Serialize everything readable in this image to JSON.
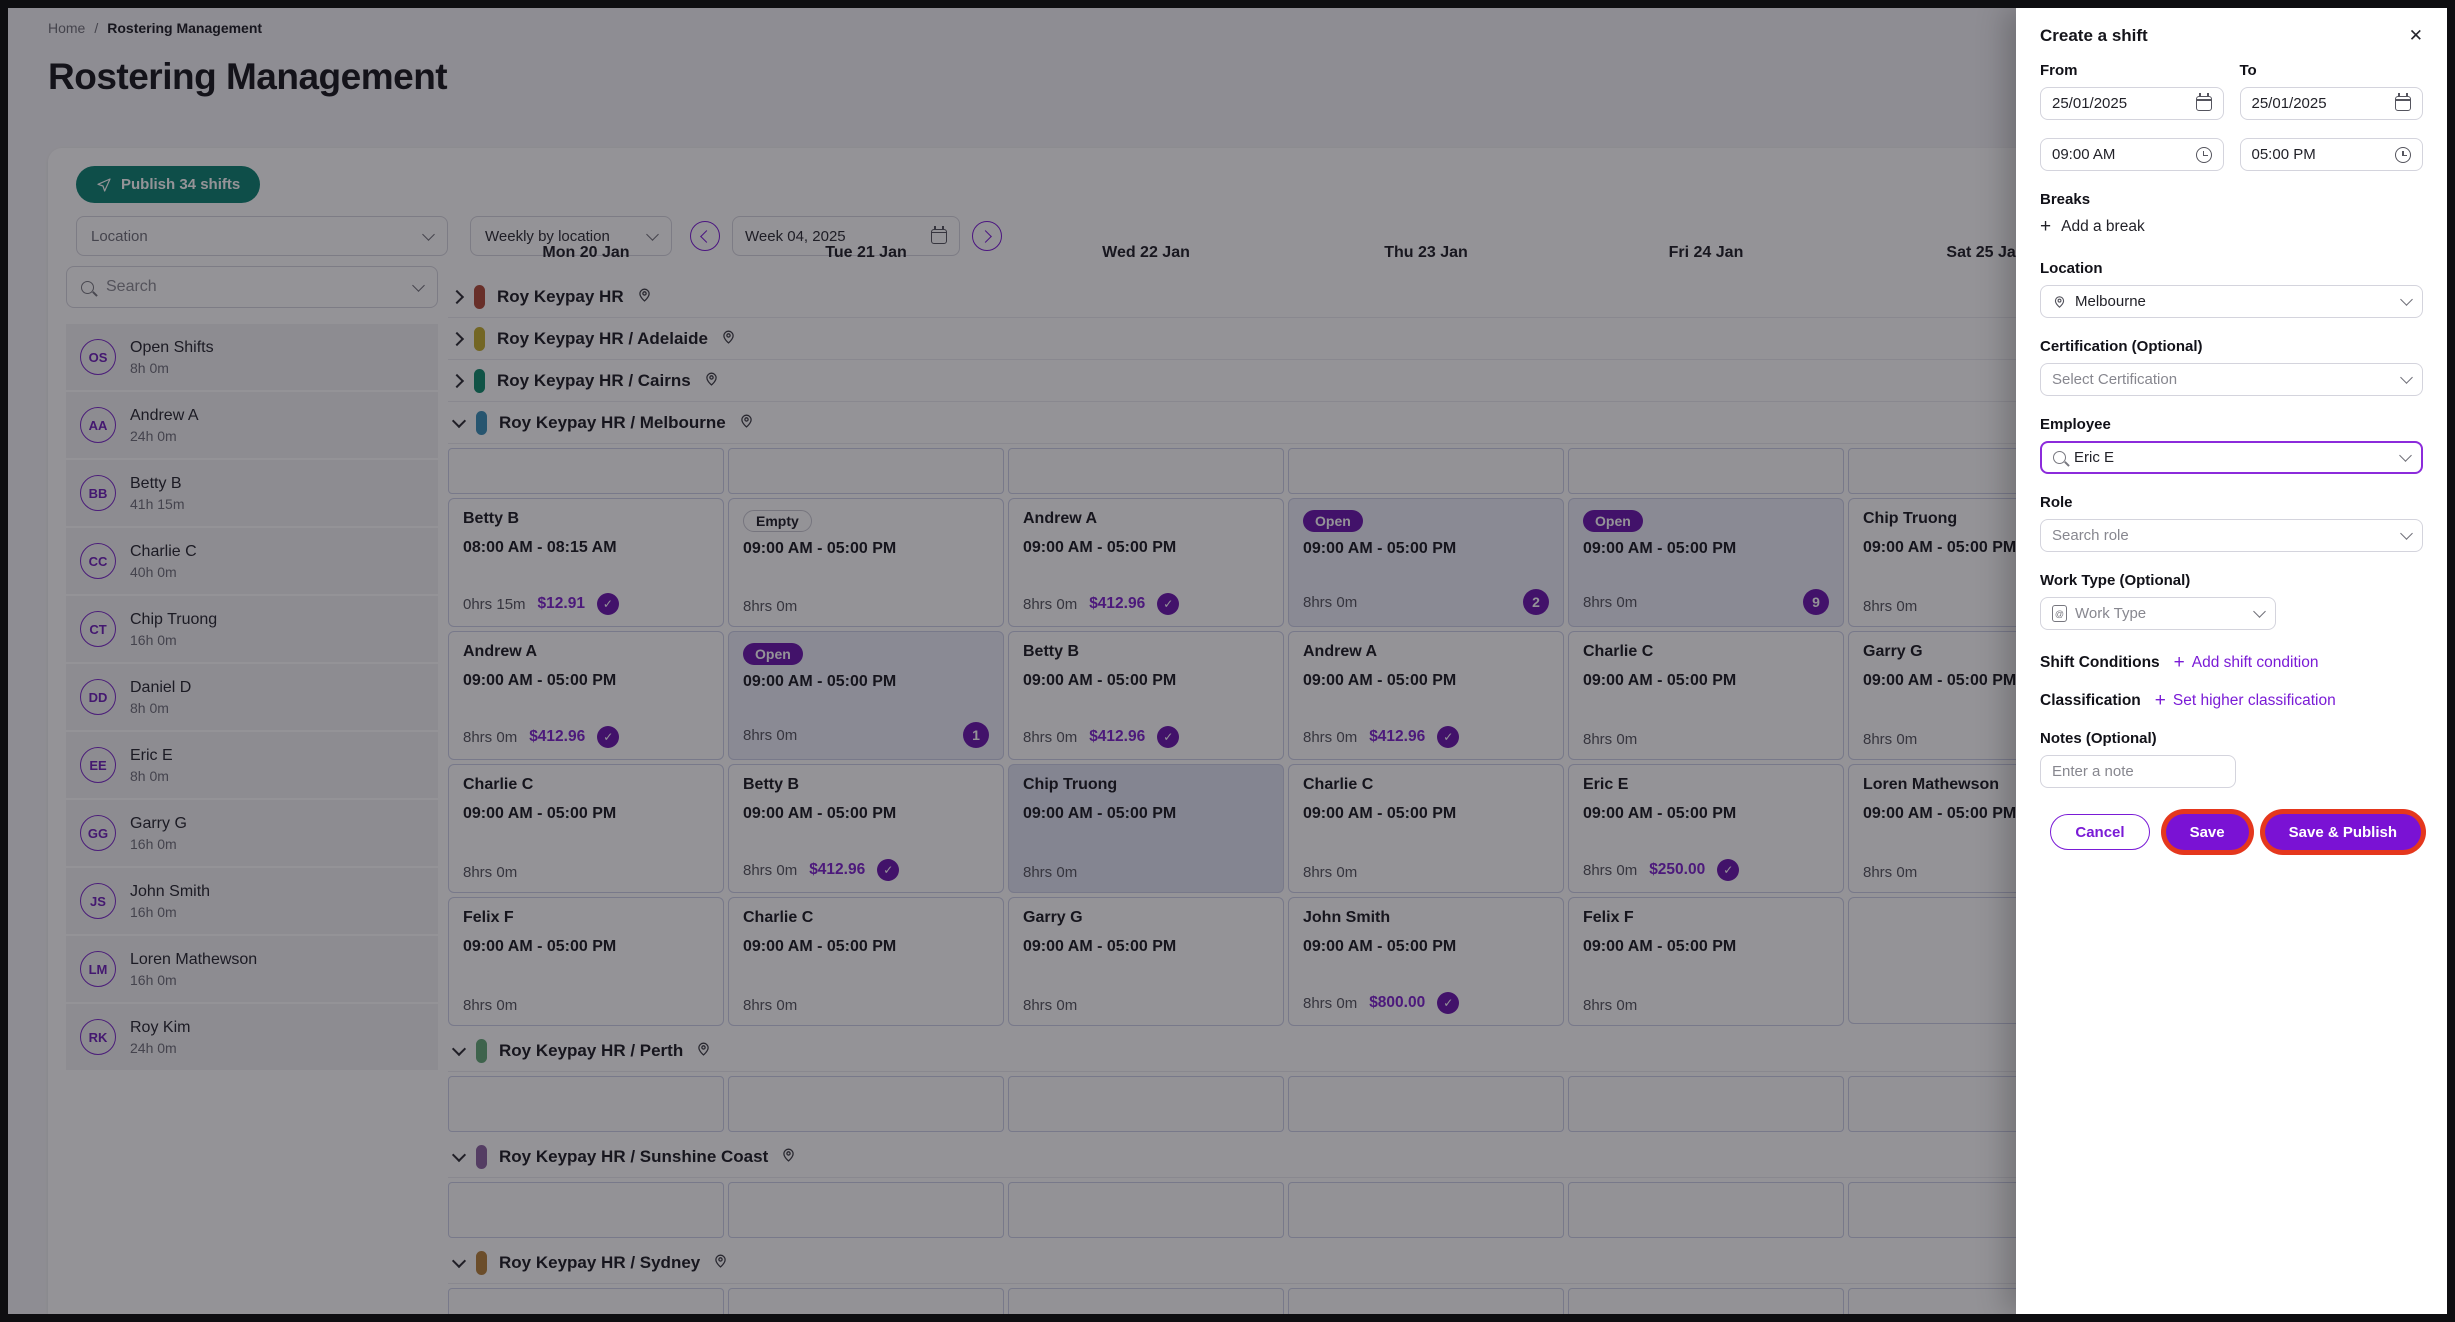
{
  "colors": {
    "accent_purple": "#7a1bd6",
    "badge_purple": "#6a15ae",
    "money_purple": "#7c22cc",
    "publish_teal": "#0c8172",
    "highlight_ring_red": "#e5371d",
    "open_cell_bg": "#edeffa",
    "selected_cell_bg": "#e2e6f4"
  },
  "icons": {
    "search": "magnifier",
    "calendar": "calendar-grid",
    "clock": "clock-face",
    "pin": "map-pin",
    "chevron": "chevron-down",
    "plus": "plus",
    "check": "check-circle",
    "send": "paper-plane",
    "close": "x"
  },
  "breadcrumb": {
    "home": "Home",
    "separator": "/",
    "current": "Rostering Management"
  },
  "page_title": "Rostering Management",
  "toolbar": {
    "publish_label": "Publish 34 shifts",
    "location_filter_placeholder": "Location",
    "view_select_value": "Weekly by location",
    "week_value": "Week 04, 2025"
  },
  "sidebar": {
    "search_placeholder": "Search",
    "people": [
      {
        "initials": "OS",
        "name": "Open Shifts",
        "hours": "8h 0m"
      },
      {
        "initials": "AA",
        "name": "Andrew A",
        "hours": "24h 0m"
      },
      {
        "initials": "BB",
        "name": "Betty B",
        "hours": "41h 15m"
      },
      {
        "initials": "CC",
        "name": "Charlie C",
        "hours": "40h 0m"
      },
      {
        "initials": "CT",
        "name": "Chip Truong",
        "hours": "16h 0m"
      },
      {
        "initials": "DD",
        "name": "Daniel D",
        "hours": "8h 0m"
      },
      {
        "initials": "EE",
        "name": "Eric E",
        "hours": "8h 0m"
      },
      {
        "initials": "GG",
        "name": "Garry G",
        "hours": "16h 0m"
      },
      {
        "initials": "JS",
        "name": "John Smith",
        "hours": "16h 0m"
      },
      {
        "initials": "LM",
        "name": "Loren Mathewson",
        "hours": "16h 0m"
      },
      {
        "initials": "RK",
        "name": "Roy Kim",
        "hours": "24h 0m"
      }
    ]
  },
  "calendar": {
    "days": [
      "Mon 20 Jan",
      "Tue 21 Jan",
      "Wed 22 Jan",
      "Thu 23 Jan",
      "Fri 24 Jan",
      "Sat 25 Jan"
    ],
    "groups": [
      {
        "name": "Roy Keypay HR",
        "color": "#b04a38",
        "expanded": false
      },
      {
        "name": "Roy Keypay HR / Adelaide",
        "color": "#c3ad2e",
        "expanded": false
      },
      {
        "name": "Roy Keypay HR / Cairns",
        "color": "#0f8b6c",
        "expanded": false
      },
      {
        "name": "Roy Keypay HR / Melbourne",
        "color": "#3a8fb7",
        "expanded": true,
        "spacer_h": 46,
        "rows": [
          [
            {
              "type": "shift",
              "name": "Betty B",
              "time": "08:00 AM - 08:15 AM",
              "duration": "0hrs 15m",
              "pay": "$12.91",
              "approved": true
            },
            {
              "type": "empty",
              "badge": "Empty",
              "time": "09:00 AM - 05:00 PM",
              "duration": "8hrs 0m"
            },
            {
              "type": "shift",
              "name": "Andrew A",
              "time": "09:00 AM - 05:00 PM",
              "duration": "8hrs 0m",
              "pay": "$412.96",
              "approved": true
            },
            {
              "type": "open",
              "badge": "Open",
              "time": "09:00 AM - 05:00 PM",
              "duration": "8hrs 0m",
              "count": "2"
            },
            {
              "type": "open",
              "badge": "Open",
              "time": "09:00 AM - 05:00 PM",
              "duration": "8hrs 0m",
              "count": "9"
            },
            {
              "type": "shift",
              "name": "Chip Truong",
              "time": "09:00 AM - 05:00 PM",
              "duration": "8hrs 0m"
            }
          ],
          [
            {
              "type": "shift",
              "name": "Andrew A",
              "time": "09:00 AM - 05:00 PM",
              "duration": "8hrs 0m",
              "pay": "$412.96",
              "approved": true
            },
            {
              "type": "open",
              "badge": "Open",
              "time": "09:00 AM - 05:00 PM",
              "duration": "8hrs 0m",
              "count": "1"
            },
            {
              "type": "shift",
              "name": "Betty B",
              "time": "09:00 AM - 05:00 PM",
              "duration": "8hrs 0m",
              "pay": "$412.96",
              "approved": true
            },
            {
              "type": "shift",
              "name": "Andrew A",
              "time": "09:00 AM - 05:00 PM",
              "duration": "8hrs 0m",
              "pay": "$412.96",
              "approved": true
            },
            {
              "type": "shift",
              "name": "Charlie C",
              "time": "09:00 AM - 05:00 PM",
              "duration": "8hrs 0m"
            },
            {
              "type": "shift",
              "name": "Garry G",
              "time": "09:00 AM - 05:00 PM",
              "duration": "8hrs 0m"
            }
          ],
          [
            {
              "type": "shift",
              "name": "Charlie C",
              "time": "09:00 AM - 05:00 PM",
              "duration": "8hrs 0m"
            },
            {
              "type": "shift",
              "name": "Betty B",
              "time": "09:00 AM - 05:00 PM",
              "duration": "8hrs 0m",
              "pay": "$412.96",
              "approved": true
            },
            {
              "type": "shift",
              "name": "Chip Truong",
              "time": "09:00 AM - 05:00 PM",
              "duration": "8hrs 0m",
              "highlight": true
            },
            {
              "type": "shift",
              "name": "Charlie C",
              "time": "09:00 AM - 05:00 PM",
              "duration": "8hrs 0m"
            },
            {
              "type": "shift",
              "name": "Eric E",
              "time": "09:00 AM - 05:00 PM",
              "duration": "8hrs 0m",
              "pay": "$250.00",
              "approved": true
            },
            {
              "type": "shift",
              "name": "Loren Mathewson",
              "time": "09:00 AM - 05:00 PM",
              "duration": "8hrs 0m"
            }
          ],
          [
            {
              "type": "shift",
              "name": "Felix F",
              "time": "09:00 AM - 05:00 PM",
              "duration": "8hrs 0m"
            },
            {
              "type": "shift",
              "name": "Charlie C",
              "time": "09:00 AM - 05:00 PM",
              "duration": "8hrs 0m"
            },
            {
              "type": "shift",
              "name": "Garry G",
              "time": "09:00 AM - 05:00 PM",
              "duration": "8hrs 0m"
            },
            {
              "type": "shift",
              "name": "John Smith",
              "time": "09:00 AM - 05:00 PM",
              "duration": "8hrs 0m",
              "pay": "$800.00",
              "approved": true
            },
            {
              "type": "shift",
              "name": "Felix F",
              "time": "09:00 AM - 05:00 PM",
              "duration": "8hrs 0m"
            },
            {
              "type": "none"
            }
          ]
        ]
      },
      {
        "name": "Roy Keypay HR / Perth",
        "color": "#63a877",
        "expanded": true,
        "spacer_h": 56,
        "rows": []
      },
      {
        "name": "Roy Keypay HR / Sunshine Coast",
        "color": "#8a63a0",
        "expanded": true,
        "spacer_h": 56,
        "rows": []
      },
      {
        "name": "Roy Keypay HR / Sydney",
        "color": "#b5803a",
        "expanded": true,
        "spacer_h": 56,
        "rows": []
      }
    ]
  },
  "panel": {
    "title": "Create a shift",
    "from_label": "From",
    "to_label": "To",
    "from_date": "25/01/2025",
    "to_date": "25/01/2025",
    "from_time": "09:00 AM",
    "to_time": "05:00 PM",
    "breaks_label": "Breaks",
    "add_break": "Add a break",
    "location_label": "Location",
    "location_value": "Melbourne",
    "certification_label": "Certification (Optional)",
    "certification_placeholder": "Select Certification",
    "employee_label": "Employee",
    "employee_value": "Eric E",
    "role_label": "Role",
    "role_placeholder": "Search role",
    "work_type_label": "Work Type (Optional)",
    "work_type_placeholder": "Work Type",
    "shift_conditions_label": "Shift Conditions",
    "add_shift_condition": "Add shift condition",
    "classification_label": "Classification",
    "set_higher_classification": "Set higher classification",
    "notes_label": "Notes (Optional)",
    "notes_placeholder": "Enter a note",
    "cancel_label": "Cancel",
    "save_label": "Save",
    "save_publish_label": "Save & Publish"
  }
}
